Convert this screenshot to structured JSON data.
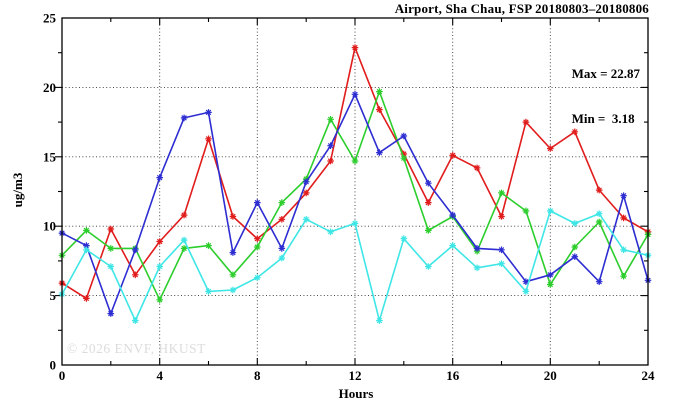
{
  "title": "Airport, Sha Chau, FSP 20180803–20180806",
  "annotation": {
    "max_label": "Max = 22.87",
    "min_label": "Min =  3.18"
  },
  "watermark": "© 2026 ENVF, HKUST",
  "axes": {
    "ylabel": "ug/m3",
    "xlabel": "Hours"
  },
  "chart_data": {
    "type": "line",
    "title": "Airport, Sha Chau, FSP 20180803–20180806",
    "xlabel": "Hours",
    "ylabel": "ug/m3",
    "xlim": [
      0,
      24
    ],
    "ylim": [
      0,
      25
    ],
    "xticks": [
      0,
      4,
      8,
      12,
      16,
      20,
      24
    ],
    "yticks": [
      0,
      5,
      10,
      15,
      20,
      25
    ],
    "minor_x_step": 2,
    "minor_y_step": 2.5,
    "grid": true,
    "marker": "asterisk",
    "legend_position": "none",
    "stats": {
      "max": 22.87,
      "min": 3.18
    },
    "x": [
      0,
      1,
      2,
      3,
      4,
      5,
      6,
      7,
      8,
      9,
      10,
      11,
      12,
      13,
      14,
      15,
      16,
      17,
      18,
      19,
      20,
      21,
      22,
      23,
      24
    ],
    "series": [
      {
        "name": "red",
        "color": "#e11c1c",
        "values": [
          5.9,
          4.8,
          9.8,
          6.5,
          8.9,
          10.8,
          16.3,
          10.7,
          9.1,
          10.5,
          12.4,
          14.7,
          22.87,
          18.4,
          15.2,
          11.7,
          15.1,
          14.2,
          10.7,
          17.5,
          15.6,
          16.8,
          12.6,
          10.6,
          9.6
        ]
      },
      {
        "name": "green",
        "color": "#2cce2c",
        "values": [
          7.9,
          9.7,
          8.4,
          8.4,
          4.7,
          8.4,
          8.6,
          6.5,
          8.5,
          11.7,
          13.4,
          17.7,
          14.7,
          19.7,
          14.9,
          9.7,
          10.7,
          8.2,
          12.4,
          11.1,
          5.8,
          8.5,
          10.3,
          6.4,
          9.4
        ]
      },
      {
        "name": "blue",
        "color": "#2d2dd2",
        "values": [
          9.5,
          8.6,
          3.7,
          8.3,
          13.5,
          17.8,
          18.2,
          8.1,
          11.7,
          8.4,
          13.2,
          15.8,
          19.5,
          15.3,
          16.5,
          13.1,
          10.8,
          8.4,
          8.3,
          6.0,
          6.5,
          7.8,
          6.0,
          12.2,
          6.1
        ]
      },
      {
        "name": "cyan",
        "color": "#3fe6e6",
        "values": [
          5.1,
          8.3,
          7.1,
          3.2,
          7.1,
          9.0,
          5.3,
          5.4,
          6.3,
          7.7,
          10.5,
          9.6,
          10.2,
          3.2,
          9.1,
          7.1,
          8.6,
          7.0,
          7.3,
          5.3,
          11.1,
          10.2,
          10.9,
          8.3,
          7.9
        ]
      }
    ]
  }
}
